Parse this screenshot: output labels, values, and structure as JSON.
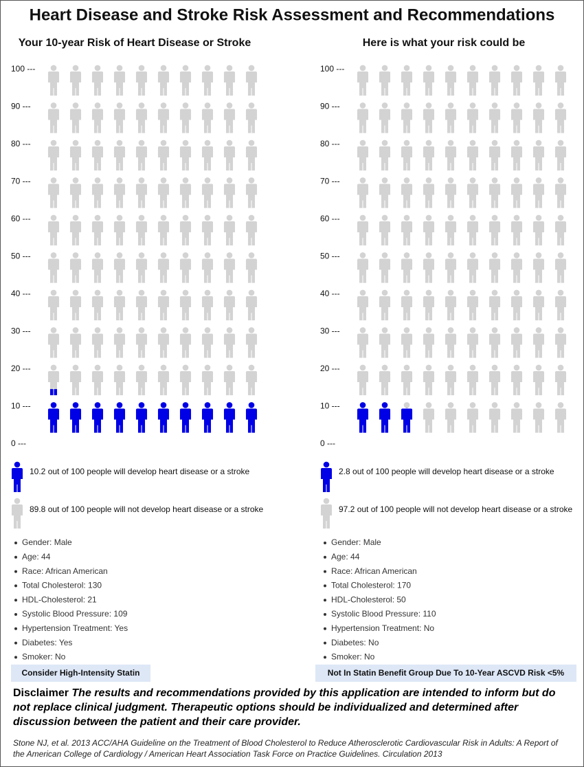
{
  "title": "Heart Disease and Stroke Risk Assessment and Recommendations",
  "chart_data": [
    {
      "type": "pictograph",
      "title": "Your 10-year Risk of Heart Disease or Stroke",
      "ylim": [
        0,
        100
      ],
      "yticks": [
        {
          "value": 0,
          "label": "0 ---"
        },
        {
          "value": 10,
          "label": "10 ---"
        },
        {
          "value": 20,
          "label": "20 ---"
        },
        {
          "value": 30,
          "label": "30 ---"
        },
        {
          "value": 40,
          "label": "40 ---"
        },
        {
          "value": 50,
          "label": "50 ---"
        },
        {
          "value": 60,
          "label": "60 ---"
        },
        {
          "value": 70,
          "label": "70 ---"
        },
        {
          "value": 80,
          "label": "80 ---"
        },
        {
          "value": 90,
          "label": "90 ---"
        },
        {
          "value": 100,
          "label": "100 ---"
        }
      ],
      "series": [
        {
          "name": "10.2 out of 100 people will develop heart disease or a stroke",
          "color": "#0000e6",
          "values": [
            10.2
          ]
        },
        {
          "name": "89.8 out of 100 people will not develop heart disease or a stroke",
          "color": "#d3d3d3",
          "values": [
            89.8
          ]
        }
      ],
      "details": [
        "Gender: Male",
        "Age: 44",
        "Race: African American",
        "Total Cholesterol: 130",
        "HDL-Cholesterol: 21",
        "Systolic Blood Pressure: 109",
        "Hypertension Treatment: Yes",
        "Diabetes: Yes",
        "Smoker: No"
      ],
      "recommendation": "Consider High-Intensity Statin"
    },
    {
      "type": "pictograph",
      "title": "Here is what your risk could be",
      "ylim": [
        0,
        100
      ],
      "yticks": [
        {
          "value": 0,
          "label": "0 ---"
        },
        {
          "value": 10,
          "label": "10 ---"
        },
        {
          "value": 20,
          "label": "20 ---"
        },
        {
          "value": 30,
          "label": "30 ---"
        },
        {
          "value": 40,
          "label": "40 ---"
        },
        {
          "value": 50,
          "label": "50 ---"
        },
        {
          "value": 60,
          "label": "60 ---"
        },
        {
          "value": 70,
          "label": "70 ---"
        },
        {
          "value": 80,
          "label": "80 ---"
        },
        {
          "value": 90,
          "label": "90 ---"
        },
        {
          "value": 100,
          "label": "100 ---"
        }
      ],
      "series": [
        {
          "name": "2.8 out of 100 people will develop heart disease or a stroke",
          "color": "#0000e6",
          "values": [
            2.8
          ]
        },
        {
          "name": "97.2 out of 100 people will not develop heart disease or a stroke",
          "color": "#d3d3d3",
          "values": [
            97.2
          ]
        }
      ],
      "details": [
        "Gender: Male",
        "Age: 44",
        "Race: African American",
        "Total Cholesterol: 170",
        "HDL-Cholesterol: 50",
        "Systolic Blood Pressure: 110",
        "Hypertension Treatment: No",
        "Diabetes: No",
        "Smoker: No"
      ],
      "recommendation": "Not In Statin Benefit Group Due To 10-Year ASCVD Risk <5%"
    }
  ],
  "disclaimer": {
    "label": "Disclaimer",
    "text": "The results and recommendations provided by this application are intended to inform but do not replace clinical judgment. Therapeutic options should be individualized and determined after discussion between the patient and their care provider."
  },
  "citation": "Stone NJ, et al. 2013 ACC/AHA Guideline on the Treatment of Blood Cholesterol to Reduce Atherosclerotic Cardiovascular Risk in Adults: A Report of the American College of Cardiology / American Heart Association Task Force on Practice Guidelines. Circulation 2013"
}
